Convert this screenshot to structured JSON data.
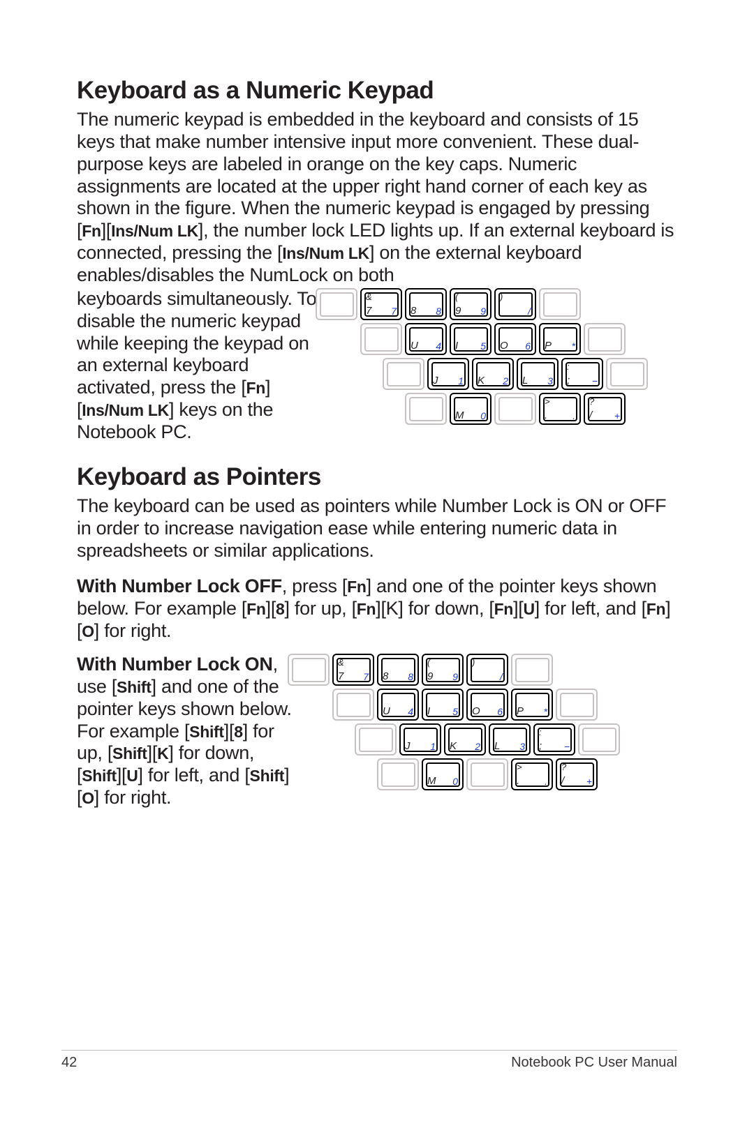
{
  "section1": {
    "heading": "Keyboard as a Numeric Keypad",
    "para_html": "The numeric keypad is embedded in the keyboard and consists of 15 keys that make number intensive input more convenient. These dual-purpose keys are labeled in orange on the key caps. Numeric assignments are located at the upper right hand corner of each key as shown in the figure. When the numeric keypad is engaged by pressing [<span class=\"bold-inline\">Fn</span>][<span class=\"bold-inline\">Ins/Num LK</span>], the number lock LED lights up. If an external keyboard is connected, pressing the [<span class=\"bold-inline\">Ins/Num LK</span>] on the external keyboard enables/disables the NumLock on both",
    "wrap_html": "keyboards simultaneously. To disable the numeric keypad while keeping the keypad on an external keyboard activated, press the [<span class=\"bold-inline\">Fn</span>][<span class=\"bold-inline\">Ins/Num LK</span>] keys on the Notebook PC."
  },
  "section2": {
    "heading": "Keyboard as Pointers",
    "para1": "The keyboard can be used as pointers while Number Lock is ON or OFF in order to increase navigation ease while entering numeric data in spreadsheets or similar applications.",
    "para2_html": "<span style=\"font-weight:700\">With Number Lock OFF</span>, press [<span class=\"bold-inline\">Fn</span>] and one of the pointer keys shown below. For example [<span class=\"bold-inline\">Fn</span>][<span class=\"bold-inline\">8</span>] for up, [<span class=\"bold-inline\">Fn</span>][K] for down, [<span class=\"bold-inline\">Fn</span>][<span class=\"bold-inline\">U</span>] for left, and [<span class=\"bold-inline\">Fn</span>][<span class=\"bold-inline\">O</span>] for right.",
    "para3_html": "<span style=\"font-weight:700\">With Number Lock ON</span>, use [<span class=\"bold-inline\">Shift</span>] and one of the pointer keys shown below. For example [<span class=\"bold-inline\">Shift</span>][<span class=\"bold-inline\">8</span>] for up, [<span class=\"bold-inline\">Shift</span>][<span class=\"bold-inline\">K</span>] for down, [<span class=\"bold-inline\">Shift</span>][<span class=\"bold-inline\">U</span>] for left, and [<span class=\"bold-inline\">Shift</span>][<span class=\"bold-inline\">O</span>] for right."
  },
  "keyboard": {
    "rows": [
      {
        "offset": "indent-offset-1",
        "keys": [
          {
            "hl": false
          },
          {
            "hl": true,
            "tl": "&",
            "bl": "7",
            "br": "7"
          },
          {
            "hl": true,
            "bl": "8",
            "br": "8"
          },
          {
            "hl": true,
            "tl": "(",
            "bl": "9",
            "br": "9"
          },
          {
            "hl": true,
            "tl": ")",
            "br": "/"
          },
          {
            "hl": false
          }
        ]
      },
      {
        "offset": "indent-offset-2",
        "keys": [
          {
            "hl": false
          },
          {
            "hl": true,
            "bl": "U",
            "br": "4"
          },
          {
            "hl": true,
            "bl": "I",
            "br": "5"
          },
          {
            "hl": true,
            "bl": "O",
            "br": "6"
          },
          {
            "hl": true,
            "bl": "P",
            "br": "*"
          },
          {
            "hl": false
          }
        ]
      },
      {
        "offset": "indent-offset-3",
        "keys": [
          {
            "hl": false
          },
          {
            "hl": true,
            "bl": "J",
            "br": "1"
          },
          {
            "hl": true,
            "bl": "K",
            "br": "2"
          },
          {
            "hl": true,
            "bl": "L",
            "br": "3"
          },
          {
            "hl": true,
            "tl": ":",
            "bl": ";",
            "br": "−"
          },
          {
            "hl": false
          }
        ]
      },
      {
        "offset": "indent-offset-4",
        "keys": [
          {
            "hl": false
          },
          {
            "hl": true,
            "bl": "M",
            "br": "0"
          },
          {
            "hl": false
          },
          {
            "hl": true,
            "tl": ">",
            "bl": ".",
            "br": "."
          },
          {
            "hl": true,
            "tl": "?",
            "bl": "/",
            "br": "+"
          }
        ]
      }
    ],
    "accent_color": "#1a3fcc",
    "hl_border": "#000000",
    "dim_border": "#c7c2c2"
  },
  "footer": {
    "page": "42",
    "title": "Notebook PC User Manual"
  }
}
